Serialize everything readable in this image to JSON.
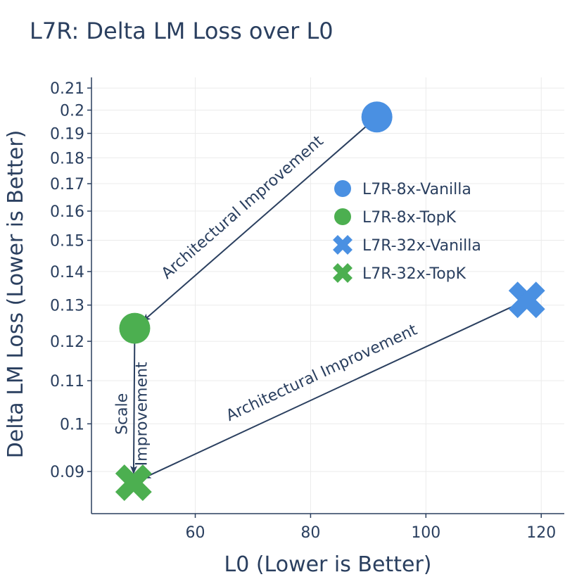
{
  "chart_data": {
    "type": "scatter",
    "title": "L7R: Delta LM Loss over L0",
    "xlabel": "L0 (Lower is Better)",
    "ylabel": "Delta LM Loss (Lower is Better)",
    "xlim": [
      42,
      124
    ],
    "ylim": [
      0.082,
      0.215
    ],
    "y_scale": "log",
    "x_ticks": [
      60,
      80,
      100,
      120
    ],
    "x_tick_labels": [
      "60",
      "80",
      "100",
      "120"
    ],
    "y_ticks": [
      0.09,
      0.1,
      0.11,
      0.12,
      0.13,
      0.14,
      0.15,
      0.16,
      0.17,
      0.18,
      0.19,
      0.2,
      0.21
    ],
    "y_tick_labels": [
      "0.09",
      "0.1",
      "0.11",
      "0.12",
      "0.13",
      "0.14",
      "0.15",
      "0.16",
      "0.17",
      "0.18",
      "0.19",
      "0.2",
      "0.21"
    ],
    "grid": true,
    "legend_position": "right-middle",
    "series": [
      {
        "name": "L7R-8x-Vanilla",
        "marker": "circle",
        "color": "#4a90e2",
        "x": 91.5,
        "y": 0.197
      },
      {
        "name": "L7R-8x-TopK",
        "marker": "circle",
        "color": "#4caf50",
        "x": 49.5,
        "y": 0.1235
      },
      {
        "name": "L7R-32x-Vanilla",
        "marker": "x",
        "color": "#4a90e2",
        "x": 117.5,
        "y": 0.1315
      },
      {
        "name": "L7R-32x-TopK",
        "marker": "x",
        "color": "#4caf50",
        "x": 49.3,
        "y": 0.0878
      }
    ],
    "annotations": [
      {
        "text": "Architectural Improvement",
        "from": [
          91.5,
          0.197
        ],
        "to": [
          49.5,
          0.1235
        ]
      },
      {
        "text": "Architectural Improvement",
        "from": [
          117.5,
          0.1315
        ],
        "to": [
          49.3,
          0.0878
        ]
      },
      {
        "text": "Scale\nImprovement",
        "from": [
          49.5,
          0.1235
        ],
        "to": [
          49.3,
          0.0878
        ]
      }
    ]
  }
}
